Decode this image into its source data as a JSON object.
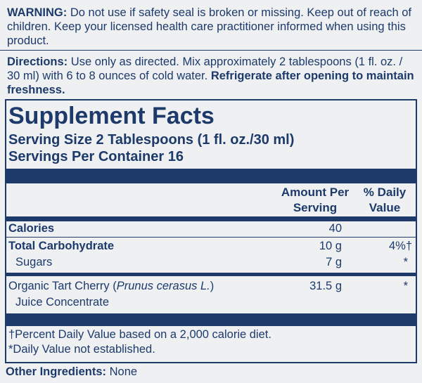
{
  "warning": {
    "label": "WARNING:",
    "text": "Do not use if safety seal is broken or missing. Keep out of reach of children. Keep your licensed health care practitioner informed when using this product."
  },
  "directions": {
    "label": "Directions:",
    "text": "Use only as directed. Mix approximately 2 tablespoons (1 fl. oz. / 30 ml) with 6 to 8 ounces of cold water.",
    "emphasis": "Refrigerate after opening to maintain freshness."
  },
  "facts": {
    "title": "Supplement Facts",
    "serving_size": "Serving Size 2 Tablespoons (1 fl. oz./30 ml)",
    "servings_per_container": "Servings Per Container 16",
    "columns": {
      "amount": "Amount Per Serving",
      "dv": "% Daily Value"
    },
    "rows": [
      {
        "name": "Calories",
        "amount": "40"
      },
      {
        "name": "Total Carbohydrate",
        "amount": "10 g",
        "dv": "4%†"
      },
      {
        "name": "Sugars",
        "amount": "7 g",
        "dv": "*"
      },
      {
        "name": "Organic Tart Cherry (",
        "latin": "Prunus cerasus L.",
        "name_end": ")",
        "name_line2": "Juice Concentrate",
        "amount": "31.5 g",
        "dv": "*"
      }
    ],
    "footnotes": [
      "†Percent Daily Value based on a 2,000 calorie diet.",
      "*Daily Value not established."
    ]
  },
  "other": {
    "label": "Other Ingredients:",
    "text": "None"
  }
}
